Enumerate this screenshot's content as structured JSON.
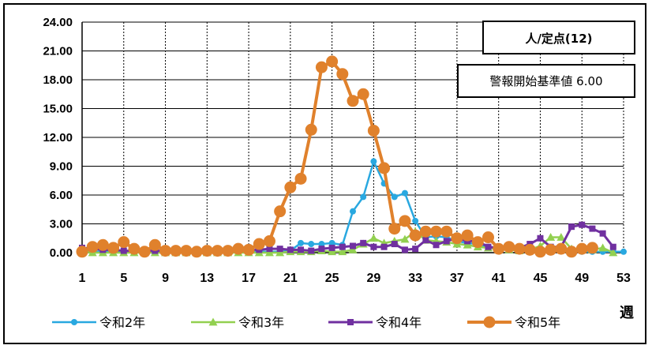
{
  "chart_data": {
    "type": "line",
    "xlabel": "週",
    "ylabel": "",
    "unit_box": "人/定点(12)",
    "threshold_box": "警報開始基準値 6.00",
    "ylim": [
      0,
      24
    ],
    "xlim": [
      1,
      53
    ],
    "x_ticks": [
      1,
      5,
      9,
      13,
      17,
      21,
      25,
      29,
      33,
      37,
      41,
      45,
      49,
      53
    ],
    "y_ticks": [
      "0.00",
      "3.00",
      "6.00",
      "9.00",
      "12.00",
      "15.00",
      "18.00",
      "21.00",
      "24.00"
    ],
    "grid": true,
    "legend_position": "bottom",
    "series": [
      {
        "name": "令和2年",
        "color": "#29a8e0",
        "marker": "circle",
        "x": [
          1,
          2,
          3,
          4,
          5,
          6,
          7,
          8,
          9,
          10,
          11,
          12,
          13,
          14,
          15,
          16,
          17,
          18,
          19,
          20,
          21,
          22,
          23,
          24,
          25,
          26,
          27,
          28,
          29,
          30,
          31,
          32,
          33,
          34,
          35,
          36,
          37,
          38,
          39,
          40,
          41,
          42,
          43,
          44,
          45,
          46,
          47,
          48,
          49,
          50,
          51,
          52,
          53
        ],
        "values": [
          0.2,
          0.1,
          0.1,
          0.1,
          0.1,
          0.1,
          0.1,
          0.1,
          0.1,
          0.1,
          0.1,
          0.1,
          0.1,
          0.1,
          0.1,
          0.1,
          0.1,
          0.1,
          0.1,
          0.1,
          0.2,
          1.0,
          0.9,
          0.9,
          1.0,
          0.8,
          4.3,
          5.8,
          9.5,
          7.2,
          5.8,
          6.2,
          3.3,
          1.6,
          1.7,
          1.6,
          1.2,
          1.0,
          0.9,
          0.5,
          0.4,
          0.3,
          0.3,
          0.3,
          0.4,
          0.2,
          0.2,
          0.2,
          0.1,
          0.1,
          0.1,
          0.1,
          0.1
        ]
      },
      {
        "name": "令和3年",
        "color": "#92d050",
        "marker": "triangle",
        "x": [
          1,
          2,
          3,
          4,
          5,
          6,
          7,
          8,
          9,
          10,
          11,
          12,
          13,
          14,
          15,
          16,
          17,
          18,
          19,
          20,
          21,
          22,
          23,
          24,
          25,
          26,
          27,
          28,
          29,
          30,
          31,
          32,
          33,
          34,
          35,
          36,
          37,
          38,
          39,
          40,
          41,
          42,
          43,
          44,
          45,
          46,
          47,
          48,
          49,
          50,
          51,
          52
        ],
        "values": [
          0.1,
          0.0,
          0.0,
          0.0,
          0.0,
          0.0,
          0.0,
          0.0,
          0.0,
          0.0,
          0.0,
          0.0,
          0.0,
          0.0,
          0.0,
          0.0,
          0.0,
          0.0,
          0.0,
          0.0,
          0.1,
          0.1,
          0.1,
          0.2,
          0.1,
          0.1,
          0.3,
          0.9,
          1.5,
          1.0,
          1.2,
          1.4,
          2.2,
          1.3,
          1.2,
          1.1,
          0.9,
          0.8,
          0.6,
          0.5,
          0.4,
          0.3,
          0.2,
          0.3,
          0.7,
          1.6,
          1.6,
          0.4,
          0.4,
          0.3,
          0.5,
          0.0
        ]
      },
      {
        "name": "令和4年",
        "color": "#7030a0",
        "marker": "square",
        "x": [
          1,
          2,
          3,
          4,
          5,
          6,
          7,
          8,
          9,
          10,
          11,
          12,
          13,
          14,
          15,
          16,
          17,
          18,
          19,
          20,
          21,
          22,
          23,
          24,
          25,
          26,
          27,
          28,
          29,
          30,
          31,
          32,
          33,
          34,
          35,
          36,
          37,
          38,
          39,
          40,
          41,
          42,
          43,
          44,
          45,
          46,
          47,
          48,
          49,
          50,
          51,
          52
        ],
        "values": [
          0.5,
          0.4,
          0.3,
          0.3,
          0.2,
          0.2,
          0.2,
          0.2,
          0.2,
          0.2,
          0.2,
          0.2,
          0.2,
          0.2,
          0.3,
          0.3,
          0.3,
          0.3,
          0.4,
          0.4,
          0.3,
          0.3,
          0.2,
          0.4,
          0.5,
          0.6,
          0.7,
          1.0,
          0.6,
          0.6,
          0.9,
          0.3,
          0.4,
          1.3,
          0.8,
          1.2,
          1.5,
          1.2,
          1.2,
          0.6,
          0.5,
          0.4,
          0.5,
          0.9,
          1.5,
          0.6,
          0.6,
          2.7,
          2.9,
          2.5,
          2.0,
          0.6
        ]
      },
      {
        "name": "令和5年",
        "color": "#e0812c",
        "marker": "circle",
        "x": [
          1,
          2,
          3,
          4,
          5,
          6,
          7,
          8,
          9,
          10,
          11,
          12,
          13,
          14,
          15,
          16,
          17,
          18,
          19,
          20,
          21,
          22,
          23,
          24,
          25,
          26,
          27,
          28,
          29,
          30,
          31,
          32,
          33,
          34,
          35,
          36,
          37,
          38,
          39,
          40,
          41,
          42,
          43,
          44,
          45,
          46,
          47,
          48,
          49,
          50
        ],
        "values": [
          0.1,
          0.6,
          0.8,
          0.5,
          1.1,
          0.4,
          0.1,
          0.8,
          0.2,
          0.2,
          0.2,
          0.1,
          0.2,
          0.2,
          0.2,
          0.4,
          0.3,
          0.9,
          1.2,
          4.3,
          6.8,
          7.7,
          12.8,
          19.3,
          19.9,
          18.6,
          15.8,
          16.5,
          12.7,
          8.8,
          2.5,
          3.3,
          1.8,
          2.2,
          2.2,
          2.2,
          1.5,
          1.8,
          1.1,
          1.6,
          0.4,
          0.6,
          0.4,
          0.3,
          0.1,
          0.3,
          0.4,
          0.1,
          0.4,
          0.5
        ]
      }
    ]
  }
}
